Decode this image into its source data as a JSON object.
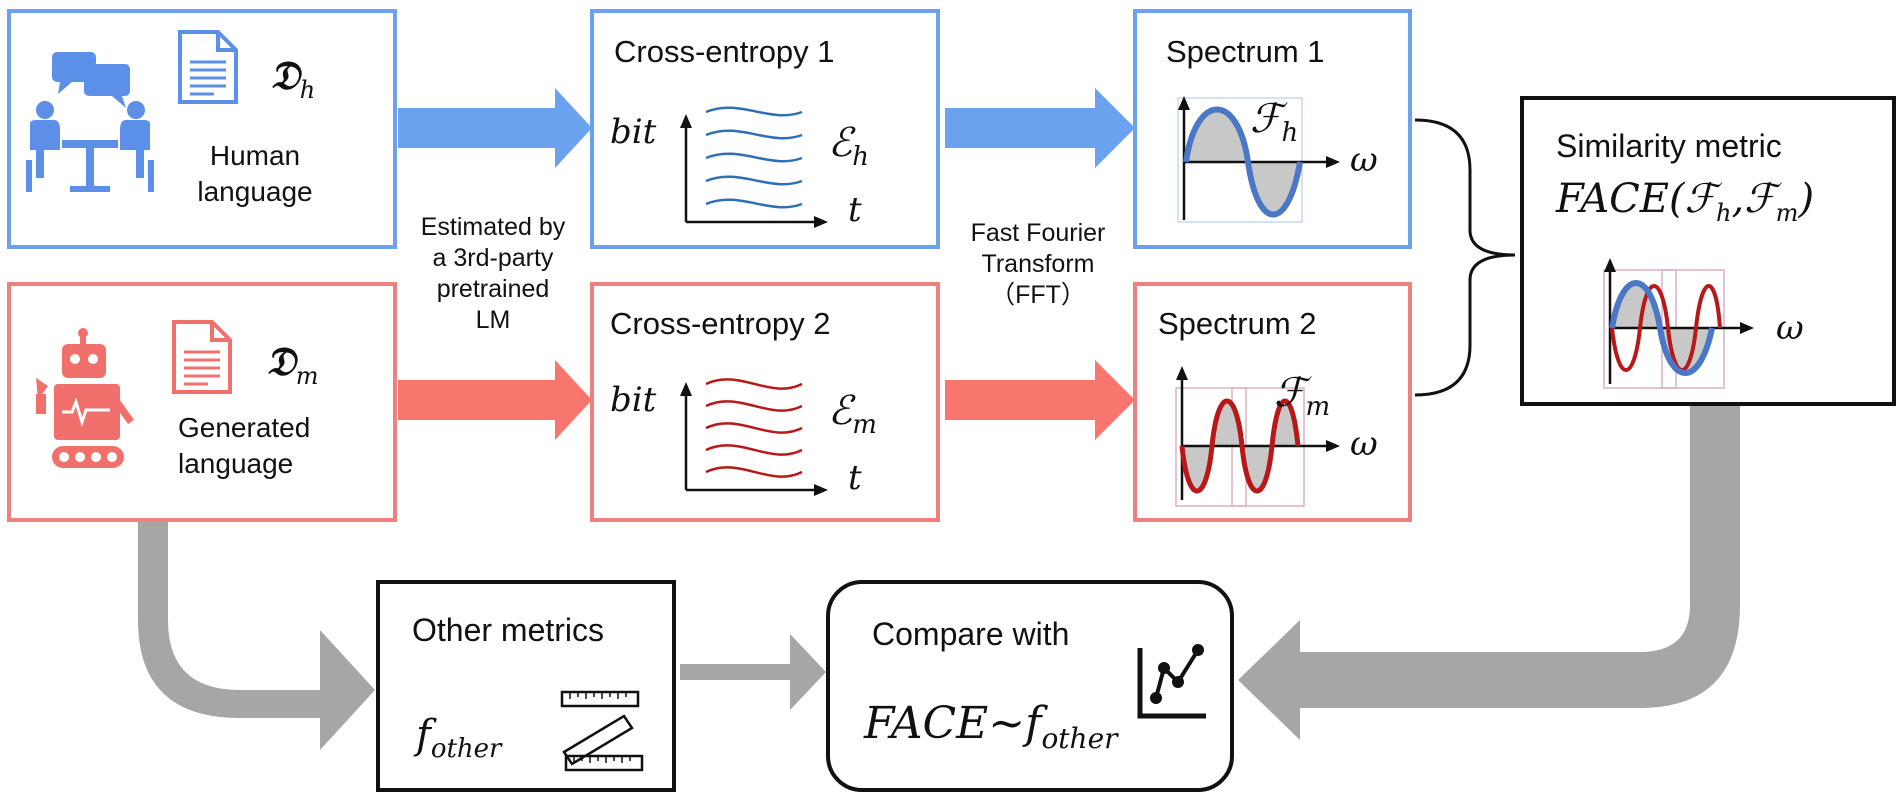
{
  "human": {
    "symbol": "𝔇",
    "sub": "h",
    "line1": "Human",
    "line2": "language"
  },
  "generated": {
    "symbol": "𝔇",
    "sub": "m",
    "line1": "Generated",
    "line2": "language"
  },
  "estimated": [
    "Estimated by",
    "a 3rd-party",
    "pretrained",
    "LM"
  ],
  "ce1": {
    "title": "Cross-entropy 1",
    "ylabel": "bit",
    "xlabel": "t",
    "symbol": "ℰ",
    "sub": "h"
  },
  "ce2": {
    "title": "Cross-entropy 2",
    "ylabel": "bit",
    "xlabel": "t",
    "symbol": "ℰ",
    "sub": "m"
  },
  "fft": [
    "Fast Fourier",
    "Transform",
    "（FFT）"
  ],
  "sp1": {
    "title": "Spectrum 1",
    "symbol": "ℱ",
    "sub": "h",
    "xlabel": "ω"
  },
  "sp2": {
    "title": "Spectrum 2",
    "symbol": "ℱ",
    "sub": "m",
    "xlabel": "ω"
  },
  "sim": {
    "title": "Similarity metric",
    "formula_name": "FACE",
    "open": "(",
    "f": "ℱ",
    "sub1": "h",
    "comma": ",",
    "sub2": "m",
    "close": ")",
    "xlabel": "ω"
  },
  "other": {
    "title": "Other metrics",
    "f": "f",
    "sub": "other"
  },
  "compare": {
    "title": "Compare with",
    "name": "FACE",
    "tilde": "~",
    "f": "f",
    "sub": "other"
  },
  "colors": {
    "blue": "#6aa2f0",
    "red": "#f08080",
    "gray": "#a6a6a6",
    "darkblue": "#2f6fb6",
    "darkred": "#b81818",
    "sineblue": "#4a78c6"
  },
  "icons": [
    "people-meeting-icon",
    "document-icon",
    "robot-icon",
    "ruler-icon",
    "line-chart-icon"
  ]
}
